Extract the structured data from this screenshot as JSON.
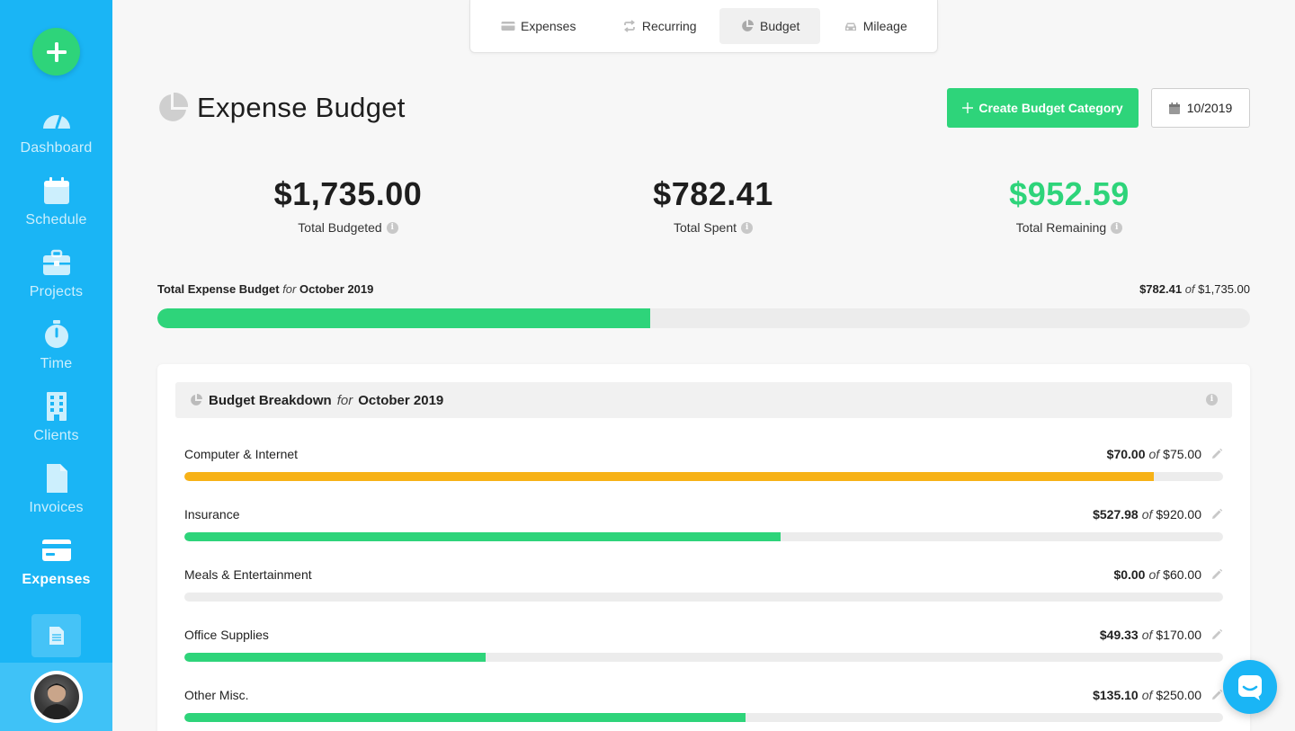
{
  "sidebar": {
    "add_icon": "plus-icon",
    "items": [
      {
        "label": "Dashboard",
        "icon": "dashboard-gauge-icon"
      },
      {
        "label": "Schedule",
        "icon": "calendar-icon"
      },
      {
        "label": "Projects",
        "icon": "briefcase-icon"
      },
      {
        "label": "Time",
        "icon": "stopwatch-icon"
      },
      {
        "label": "Clients",
        "icon": "building-icon"
      },
      {
        "label": "Invoices",
        "icon": "document-icon"
      },
      {
        "label": "Expenses",
        "icon": "credit-card-icon",
        "active": true
      }
    ],
    "doc_icon": "notes-icon"
  },
  "tabs": [
    {
      "label": "Expenses",
      "icon": "credit-card-icon"
    },
    {
      "label": "Recurring",
      "icon": "repeat-icon"
    },
    {
      "label": "Budget",
      "icon": "pie-chart-icon",
      "active": true
    },
    {
      "label": "Mileage",
      "icon": "car-icon"
    }
  ],
  "header": {
    "title": "Expense Budget",
    "create_label": "Create Budget Category",
    "date_value": "10/2019"
  },
  "stats": {
    "budgeted": {
      "value": "$1,735.00",
      "label": "Total Budgeted"
    },
    "spent": {
      "value": "$782.41",
      "label": "Total Spent"
    },
    "remaining": {
      "value": "$952.59",
      "label": "Total Remaining"
    }
  },
  "total": {
    "label": "Total Expense Budget",
    "for_word": "for",
    "period": "October 2019",
    "spent": "$782.41",
    "of_word": "of",
    "budget": "$1,735.00",
    "progress": 0.451
  },
  "breakdown": {
    "title": "Budget Breakdown",
    "for_word": "for",
    "period": "October 2019",
    "rows": [
      {
        "name": "Computer & Internet",
        "spent": "$70.00",
        "of_word": "of",
        "budget": "$75.00",
        "progress": 0.933,
        "color": "#f7b217"
      },
      {
        "name": "Insurance",
        "spent": "$527.98",
        "of_word": "of",
        "budget": "$920.00",
        "progress": 0.574,
        "color": "#2ed47a"
      },
      {
        "name": "Meals & Entertainment",
        "spent": "$0.00",
        "of_word": "of",
        "budget": "$60.00",
        "progress": 0.0,
        "color": "#2ed47a"
      },
      {
        "name": "Office Supplies",
        "spent": "$49.33",
        "of_word": "of",
        "budget": "$170.00",
        "progress": 0.29,
        "color": "#2ed47a"
      },
      {
        "name": "Other Misc.",
        "spent": "$135.10",
        "of_word": "of",
        "budget": "$250.00",
        "progress": 0.54,
        "color": "#2ed47a"
      }
    ]
  },
  "colors": {
    "sidebar": "#1ab5f5",
    "accent_green": "#2ed47a",
    "warning_orange": "#f7b217",
    "track": "#ececec"
  }
}
